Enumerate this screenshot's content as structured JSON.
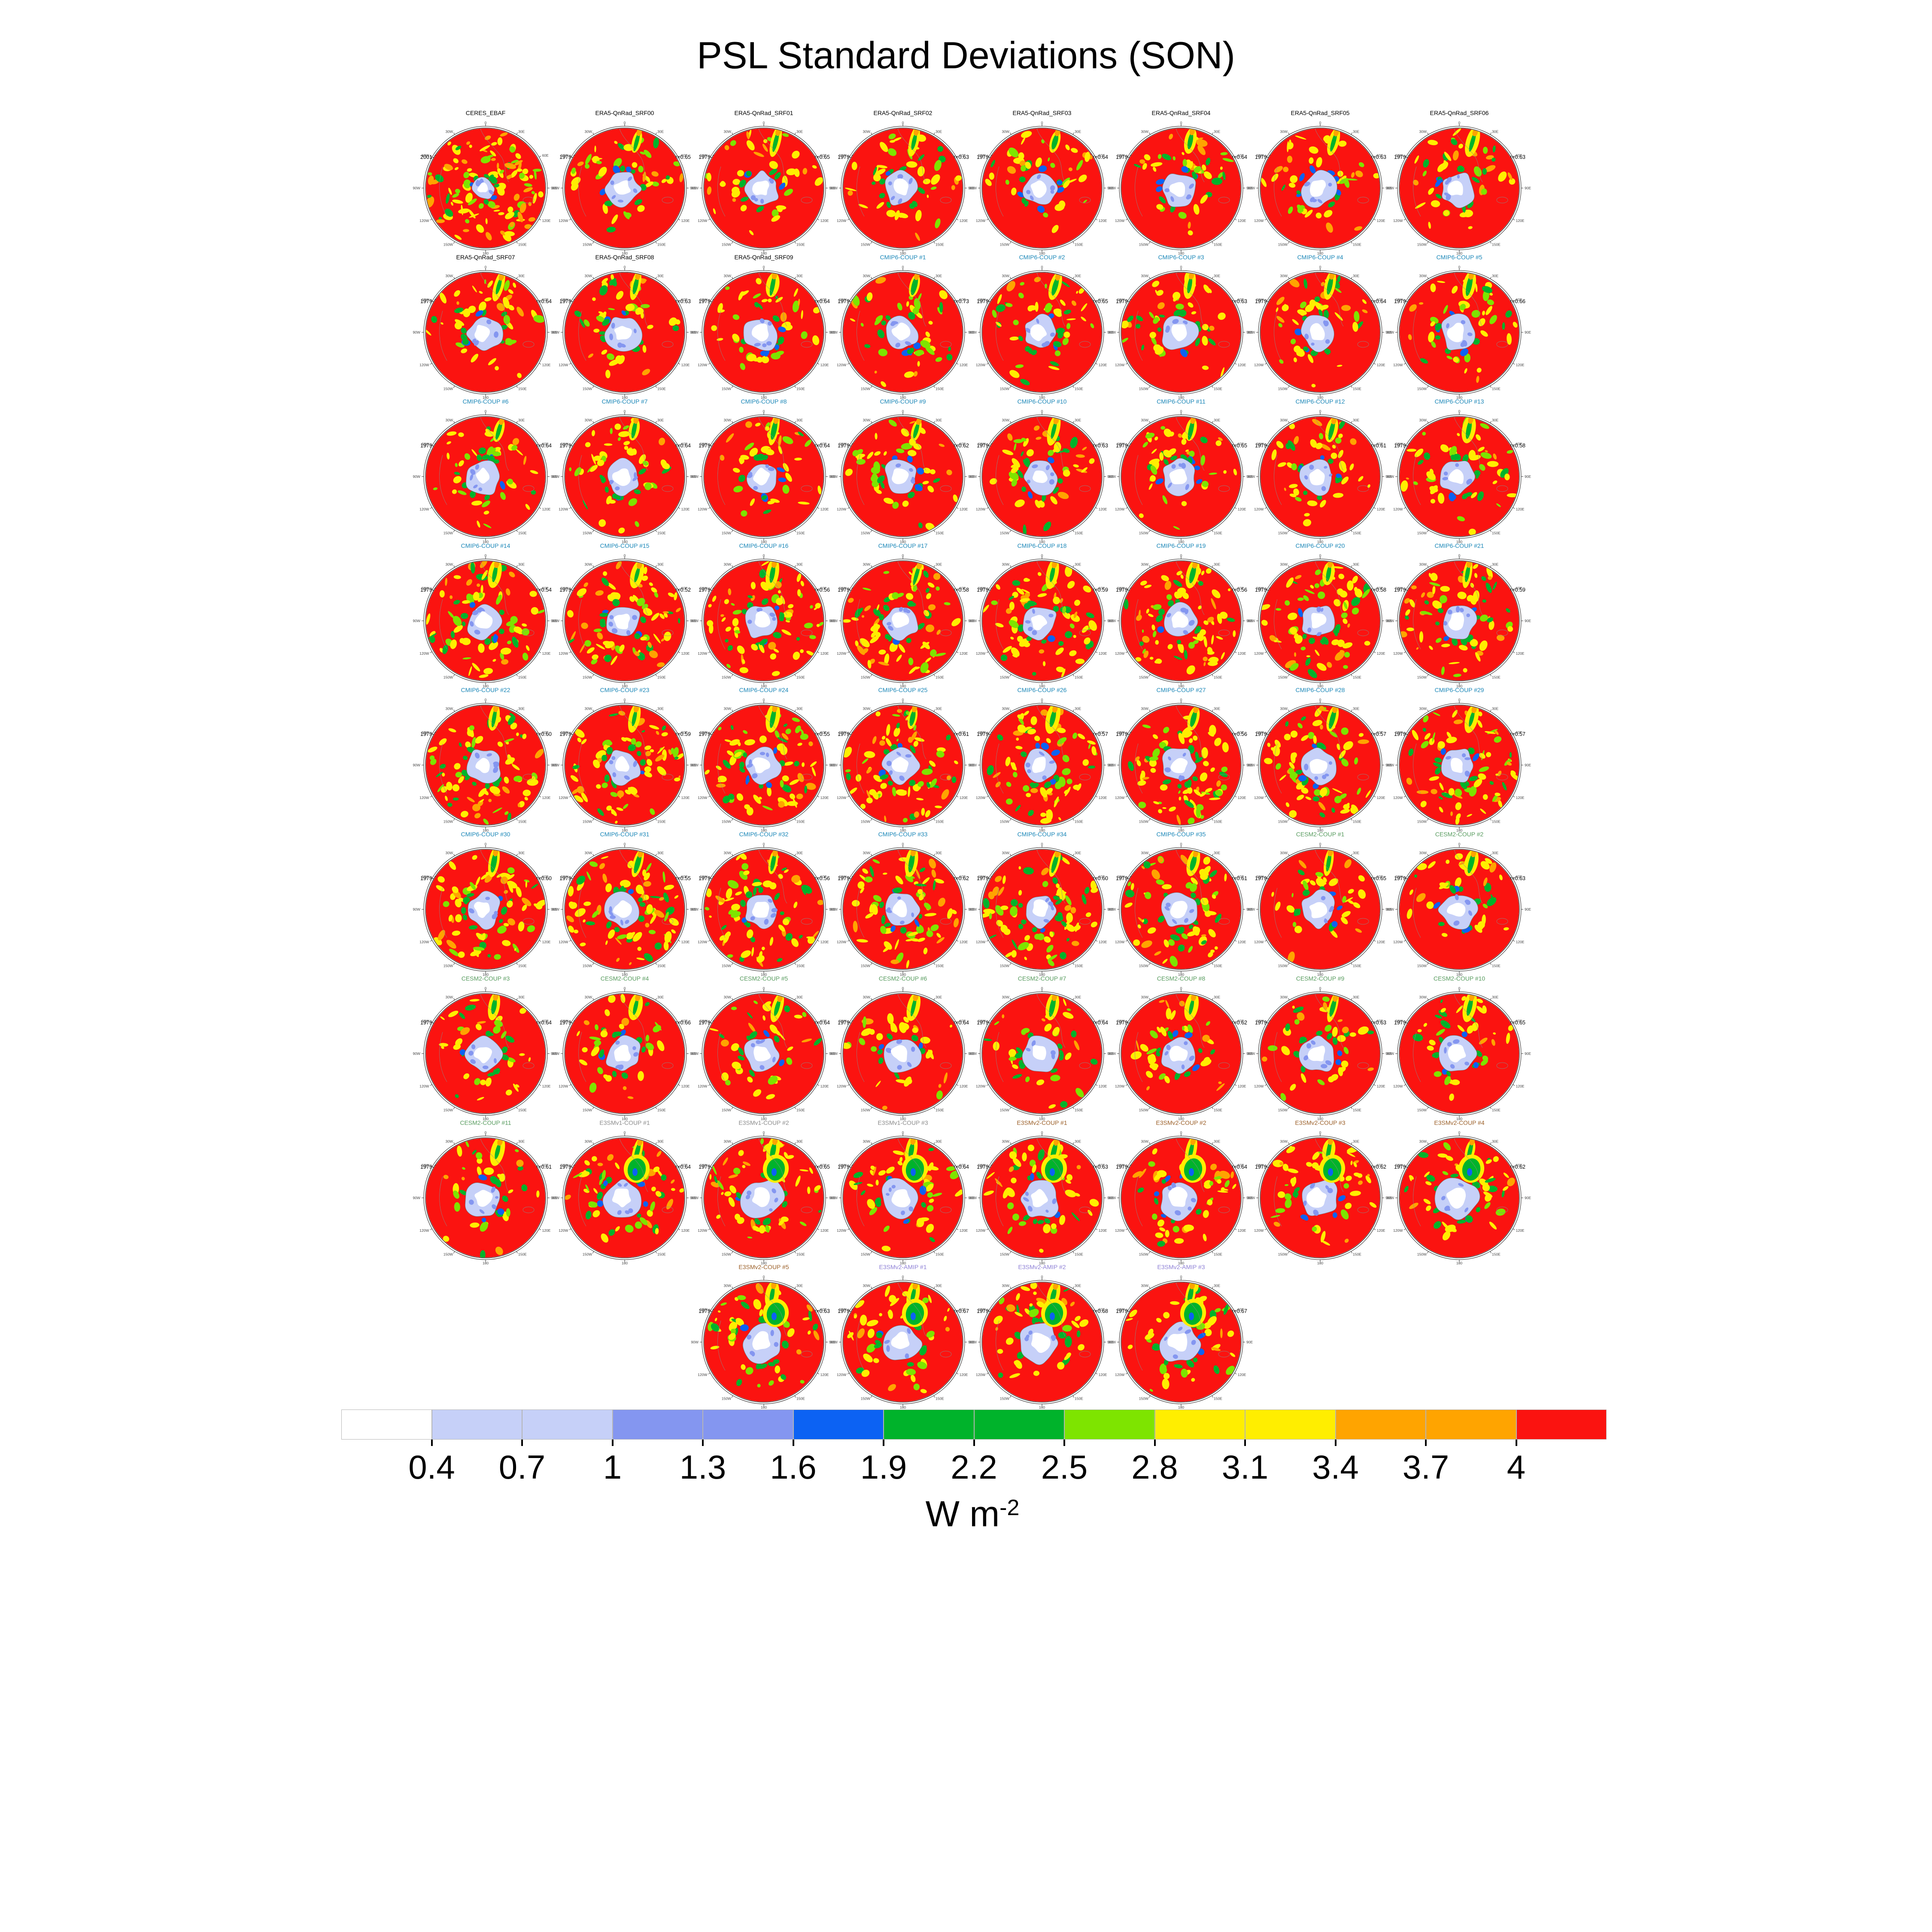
{
  "title": "PSL Standard Deviations (SON)",
  "colorbar_unit": {
    "base": "W m",
    "exp": "-2"
  },
  "group_colors": {
    "obs": "#000000",
    "era5": "#000000",
    "cmip6": "#1b87b8",
    "cesm2": "#579b5e",
    "e3smv1": "#8c8c8c",
    "e3smv2": "#9b5f28",
    "e3smv2_amip": "#8f81d6"
  },
  "map_palette": {
    "red": "#fb1310",
    "yellow": "#ffee00",
    "orange": "#ffa400",
    "yellow_green": "#7ee400",
    "green": "#00b32b",
    "blue": "#0c62f3",
    "mid_blue": "#8496f0",
    "light_blue": "#c6d0f8",
    "white": "#ffffff",
    "coast": "#8a8a8a",
    "ring": "#222222"
  },
  "chart_data": {
    "type": "heatmap",
    "title": "PSL Standard Deviations (SON)",
    "layout": "grid of 68 southern-hemisphere polar stereographic panels, 8 per row, 4 centered in last row; shared discrete colorbar at bottom",
    "unit": "W m-2",
    "colorbar": {
      "labels": [
        "0.4",
        "0.7",
        "1",
        "1.3",
        "1.6",
        "1.9",
        "2.2",
        "2.5",
        "2.8",
        "3.1",
        "3.4",
        "3.7",
        "4"
      ],
      "boundaries": [
        0.4,
        0.7,
        1,
        1.3,
        1.6,
        1.9,
        2.2,
        2.5,
        2.8,
        3.1,
        3.4,
        3.7,
        4
      ],
      "colors": [
        "#ffffff",
        "#c6d0f8",
        "#c6d0f8",
        "#8496f0",
        "#8496f0",
        "#0c62f3",
        "#00b32b",
        "#00b32b",
        "#7ee400",
        "#ffee00",
        "#ffee00",
        "#ffa400",
        "#ffa400",
        "#fb1310"
      ]
    },
    "lon_ring_labels": [
      "0",
      "30E",
      "60E",
      "90E",
      "120E",
      "150E",
      "180",
      "150W",
      "120W",
      "90W",
      "60W",
      "30W"
    ],
    "rows": [
      [
        {
          "name": "CERES_EBAF",
          "group": "obs",
          "years": "2001-2014",
          "r": null,
          "r_label": ""
        },
        {
          "name": "ERA5-QnRad_SRF00",
          "group": "era5",
          "years": "1979-2014",
          "r": 0.65,
          "r_label": "r=0.65"
        },
        {
          "name": "ERA5-QnRad_SRF01",
          "group": "era5",
          "years": "1979-2014",
          "r": 0.65,
          "r_label": "r=0.65"
        },
        {
          "name": "ERA5-QnRad_SRF02",
          "group": "era5",
          "years": "1979-2014",
          "r": 0.63,
          "r_label": "r=0.63"
        },
        {
          "name": "ERA5-QnRad_SRF03",
          "group": "era5",
          "years": "1979-2014",
          "r": 0.64,
          "r_label": "r=0.64"
        },
        {
          "name": "ERA5-QnRad_SRF04",
          "group": "era5",
          "years": "1979-2014",
          "r": 0.64,
          "r_label": "r=0.64"
        },
        {
          "name": "ERA5-QnRad_SRF05",
          "group": "era5",
          "years": "1979-2014",
          "r": 0.63,
          "r_label": "r=0.63"
        },
        {
          "name": "ERA5-QnRad_SRF06",
          "group": "era5",
          "years": "1979-2014",
          "r": 0.63,
          "r_label": "r=0.63"
        }
      ],
      [
        {
          "name": "ERA5-QnRad_SRF07",
          "group": "era5",
          "years": "1979-2014",
          "r": 0.64,
          "r_label": "r=0.64"
        },
        {
          "name": "ERA5-QnRad_SRF08",
          "group": "era5",
          "years": "1979-2014",
          "r": 0.63,
          "r_label": "r=0.63"
        },
        {
          "name": "ERA5-QnRad_SRF09",
          "group": "era5",
          "years": "1979-2014",
          "r": 0.64,
          "r_label": "r=0.64"
        },
        {
          "name": "CMIP6-COUP #1",
          "group": "cmip6",
          "years": "1979-2014",
          "r": 0.73,
          "r_label": "r=0.73"
        },
        {
          "name": "CMIP6-COUP #2",
          "group": "cmip6",
          "years": "1979-2014",
          "r": 0.65,
          "r_label": "r=0.65"
        },
        {
          "name": "CMIP6-COUP #3",
          "group": "cmip6",
          "years": "1979-2014",
          "r": 0.63,
          "r_label": "r=0.63"
        },
        {
          "name": "CMIP6-COUP #4",
          "group": "cmip6",
          "years": "1979-2014",
          "r": 0.64,
          "r_label": "r=0.64"
        },
        {
          "name": "CMIP6-COUP #5",
          "group": "cmip6",
          "years": "1979-2014",
          "r": 0.66,
          "r_label": "r=0.66"
        }
      ],
      [
        {
          "name": "CMIP6-COUP #6",
          "group": "cmip6",
          "years": "1979-2014",
          "r": 0.64,
          "r_label": "r=0.64"
        },
        {
          "name": "CMIP6-COUP #7",
          "group": "cmip6",
          "years": "1979-2014",
          "r": 0.64,
          "r_label": "r=0.64"
        },
        {
          "name": "CMIP6-COUP #8",
          "group": "cmip6",
          "years": "1979-2014",
          "r": 0.64,
          "r_label": "r=0.64"
        },
        {
          "name": "CMIP6-COUP #9",
          "group": "cmip6",
          "years": "1979-2014",
          "r": 0.62,
          "r_label": "r=0.62"
        },
        {
          "name": "CMIP6-COUP #10",
          "group": "cmip6",
          "years": "1979-2014",
          "r": 0.63,
          "r_label": "r=0.63"
        },
        {
          "name": "CMIP6-COUP #11",
          "group": "cmip6",
          "years": "1979-2014",
          "r": 0.65,
          "r_label": "r=0.65"
        },
        {
          "name": "CMIP6-COUP #12",
          "group": "cmip6",
          "years": "1979-2014",
          "r": 0.61,
          "r_label": "r=0.61"
        },
        {
          "name": "CMIP6-COUP #13",
          "group": "cmip6",
          "years": "1979-2014",
          "r": 0.58,
          "r_label": "r=0.58"
        }
      ],
      [
        {
          "name": "CMIP6-COUP #14",
          "group": "cmip6",
          "years": "1979-2014",
          "r": 0.54,
          "r_label": "r=0.54"
        },
        {
          "name": "CMIP6-COUP #15",
          "group": "cmip6",
          "years": "1979-2014",
          "r": 0.52,
          "r_label": "r=0.52"
        },
        {
          "name": "CMIP6-COUP #16",
          "group": "cmip6",
          "years": "1979-2014",
          "r": 0.56,
          "r_label": "r=0.56"
        },
        {
          "name": "CMIP6-COUP #17",
          "group": "cmip6",
          "years": "1979-2014",
          "r": 0.58,
          "r_label": "r=0.58"
        },
        {
          "name": "CMIP6-COUP #18",
          "group": "cmip6",
          "years": "1979-2014",
          "r": 0.59,
          "r_label": "r=0.59"
        },
        {
          "name": "CMIP6-COUP #19",
          "group": "cmip6",
          "years": "1979-2014",
          "r": 0.56,
          "r_label": "r=0.56"
        },
        {
          "name": "CMIP6-COUP #20",
          "group": "cmip6",
          "years": "1979-2014",
          "r": 0.58,
          "r_label": "r=0.58"
        },
        {
          "name": "CMIP6-COUP #21",
          "group": "cmip6",
          "years": "1979-2014",
          "r": 0.59,
          "r_label": "r=0.59"
        }
      ],
      [
        {
          "name": "CMIP6-COUP #22",
          "group": "cmip6",
          "years": "1979-2014",
          "r": 0.6,
          "r_label": "r=0.60"
        },
        {
          "name": "CMIP6-COUP #23",
          "group": "cmip6",
          "years": "1979-2014",
          "r": 0.59,
          "r_label": "r=0.59"
        },
        {
          "name": "CMIP6-COUP #24",
          "group": "cmip6",
          "years": "1979-2014",
          "r": 0.55,
          "r_label": "r=0.55"
        },
        {
          "name": "CMIP6-COUP #25",
          "group": "cmip6",
          "years": "1979-2014",
          "r": 0.61,
          "r_label": "r=0.61"
        },
        {
          "name": "CMIP6-COUP #26",
          "group": "cmip6",
          "years": "1979-2014",
          "r": 0.57,
          "r_label": "r=0.57"
        },
        {
          "name": "CMIP6-COUP #27",
          "group": "cmip6",
          "years": "1979-2014",
          "r": 0.56,
          "r_label": "r=0.56"
        },
        {
          "name": "CMIP6-COUP #28",
          "group": "cmip6",
          "years": "1979-2014",
          "r": 0.57,
          "r_label": "r=0.57"
        },
        {
          "name": "CMIP6-COUP #29",
          "group": "cmip6",
          "years": "1979-2014",
          "r": 0.57,
          "r_label": "r=0.57"
        }
      ],
      [
        {
          "name": "CMIP6-COUP #30",
          "group": "cmip6",
          "years": "1979-2014",
          "r": 0.6,
          "r_label": "r=0.60"
        },
        {
          "name": "CMIP6-COUP #31",
          "group": "cmip6",
          "years": "1979-2014",
          "r": 0.55,
          "r_label": "r=0.55"
        },
        {
          "name": "CMIP6-COUP #32",
          "group": "cmip6",
          "years": "1979-2014",
          "r": 0.56,
          "r_label": "r=0.56"
        },
        {
          "name": "CMIP6-COUP #33",
          "group": "cmip6",
          "years": "1979-2014",
          "r": 0.62,
          "r_label": "r=0.62"
        },
        {
          "name": "CMIP6-COUP #34",
          "group": "cmip6",
          "years": "1979-2014",
          "r": 0.6,
          "r_label": "r=0.60"
        },
        {
          "name": "CMIP6-COUP #35",
          "group": "cmip6",
          "years": "1979-2014",
          "r": 0.61,
          "r_label": "r=0.61"
        },
        {
          "name": "CESM2-COUP #1",
          "group": "cesm2",
          "years": "1979-2014",
          "r": 0.65,
          "r_label": "r=0.65"
        },
        {
          "name": "CESM2-COUP #2",
          "group": "cesm2",
          "years": "1979-2014",
          "r": 0.63,
          "r_label": "r=0.63"
        }
      ],
      [
        {
          "name": "CESM2-COUP #3",
          "group": "cesm2",
          "years": "1979-2014",
          "r": 0.64,
          "r_label": "r=0.64"
        },
        {
          "name": "CESM2-COUP #4",
          "group": "cesm2",
          "years": "1979-2014",
          "r": 0.66,
          "r_label": "r=0.66"
        },
        {
          "name": "CESM2-COUP #5",
          "group": "cesm2",
          "years": "1979-2014",
          "r": 0.64,
          "r_label": "r=0.64"
        },
        {
          "name": "CESM2-COUP #6",
          "group": "cesm2",
          "years": "1979-2014",
          "r": 0.64,
          "r_label": "r=0.64"
        },
        {
          "name": "CESM2-COUP #7",
          "group": "cesm2",
          "years": "1979-2014",
          "r": 0.64,
          "r_label": "r=0.64"
        },
        {
          "name": "CESM2-COUP #8",
          "group": "cesm2",
          "years": "1979-2014",
          "r": 0.62,
          "r_label": "r=0.62"
        },
        {
          "name": "CESM2-COUP #9",
          "group": "cesm2",
          "years": "1979-2014",
          "r": 0.63,
          "r_label": "r=0.63"
        },
        {
          "name": "CESM2-COUP #10",
          "group": "cesm2",
          "years": "1979-2014",
          "r": 0.65,
          "r_label": "r=0.65"
        }
      ],
      [
        {
          "name": "CESM2-COUP #11",
          "group": "cesm2",
          "years": "1979-2014",
          "r": 0.61,
          "r_label": "r=0.61"
        },
        {
          "name": "E3SMv1-COUP #1",
          "group": "e3smv1",
          "years": "1979-2014",
          "r": 0.64,
          "r_label": "r=0.64"
        },
        {
          "name": "E3SMv1-COUP #2",
          "group": "e3smv1",
          "years": "1979-2014",
          "r": 0.65,
          "r_label": "r=0.65"
        },
        {
          "name": "E3SMv1-COUP #3",
          "group": "e3smv1",
          "years": "1979-2014",
          "r": 0.64,
          "r_label": "r=0.64"
        },
        {
          "name": "E3SMv2-COUP #1",
          "group": "e3smv2",
          "years": "1979-2014",
          "r": 0.63,
          "r_label": "r=0.63"
        },
        {
          "name": "E3SMv2-COUP #2",
          "group": "e3smv2",
          "years": "1979-2014",
          "r": 0.64,
          "r_label": "r=0.64"
        },
        {
          "name": "E3SMv2-COUP #3",
          "group": "e3smv2",
          "years": "1979-2014",
          "r": 0.62,
          "r_label": "r=0.62"
        },
        {
          "name": "E3SMv2-COUP #4",
          "group": "e3smv2",
          "years": "1979-2014",
          "r": 0.62,
          "r_label": "r=0.62"
        }
      ],
      [
        {
          "name": "E3SMv2-COUP #5",
          "group": "e3smv2",
          "years": "1979-2014",
          "r": 0.63,
          "r_label": "r=0.63"
        },
        {
          "name": "E3SMv2-AMIP #1",
          "group": "e3smv2_amip",
          "years": "1979-2014",
          "r": 0.67,
          "r_label": "r=0.67"
        },
        {
          "name": "E3SMv2-AMIP #2",
          "group": "e3smv2_amip",
          "years": "1979-2014",
          "r": 0.68,
          "r_label": "r=0.68"
        },
        {
          "name": "E3SMv2-AMIP #3",
          "group": "e3smv2_amip",
          "years": "1979-2014",
          "r": 0.67,
          "r_label": "r=0.67"
        }
      ]
    ]
  }
}
